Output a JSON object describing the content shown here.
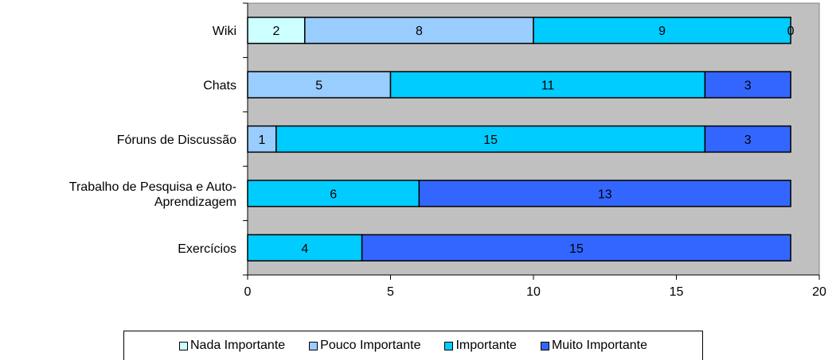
{
  "chart_data": {
    "type": "bar",
    "orientation": "horizontal",
    "stacked": true,
    "categories": [
      "Wiki",
      "Chats",
      "Fóruns de Discussão",
      "Trabalho de Pesquisa e Auto-Aprendizagem",
      "Exercícios"
    ],
    "category_lines": [
      [
        "Wiki"
      ],
      [
        "Chats"
      ],
      [
        "Fóruns de Discussão"
      ],
      [
        "Trabalho de Pesquisa e Auto-",
        "Aprendizagem"
      ],
      [
        "Exercícios"
      ]
    ],
    "series": [
      {
        "name": "Nada Importante",
        "color": "#ccffff",
        "values": [
          2,
          0,
          0,
          0,
          0
        ]
      },
      {
        "name": "Pouco Importante",
        "color": "#99ccff",
        "values": [
          8,
          5,
          1,
          0,
          0
        ]
      },
      {
        "name": "Importante",
        "color": "#00ccff",
        "values": [
          9,
          11,
          15,
          6,
          4
        ]
      },
      {
        "name": "Muito Importante",
        "color": "#3366ff",
        "values": [
          0,
          3,
          3,
          13,
          15
        ]
      }
    ],
    "xlim": [
      0,
      20
    ],
    "x_ticks": [
      "0",
      "5",
      "10",
      "15",
      "20"
    ],
    "plot_background": "#c0c0c0",
    "grid": false,
    "legend_position": "bottom",
    "title": "",
    "xlabel": "",
    "ylabel": ""
  }
}
